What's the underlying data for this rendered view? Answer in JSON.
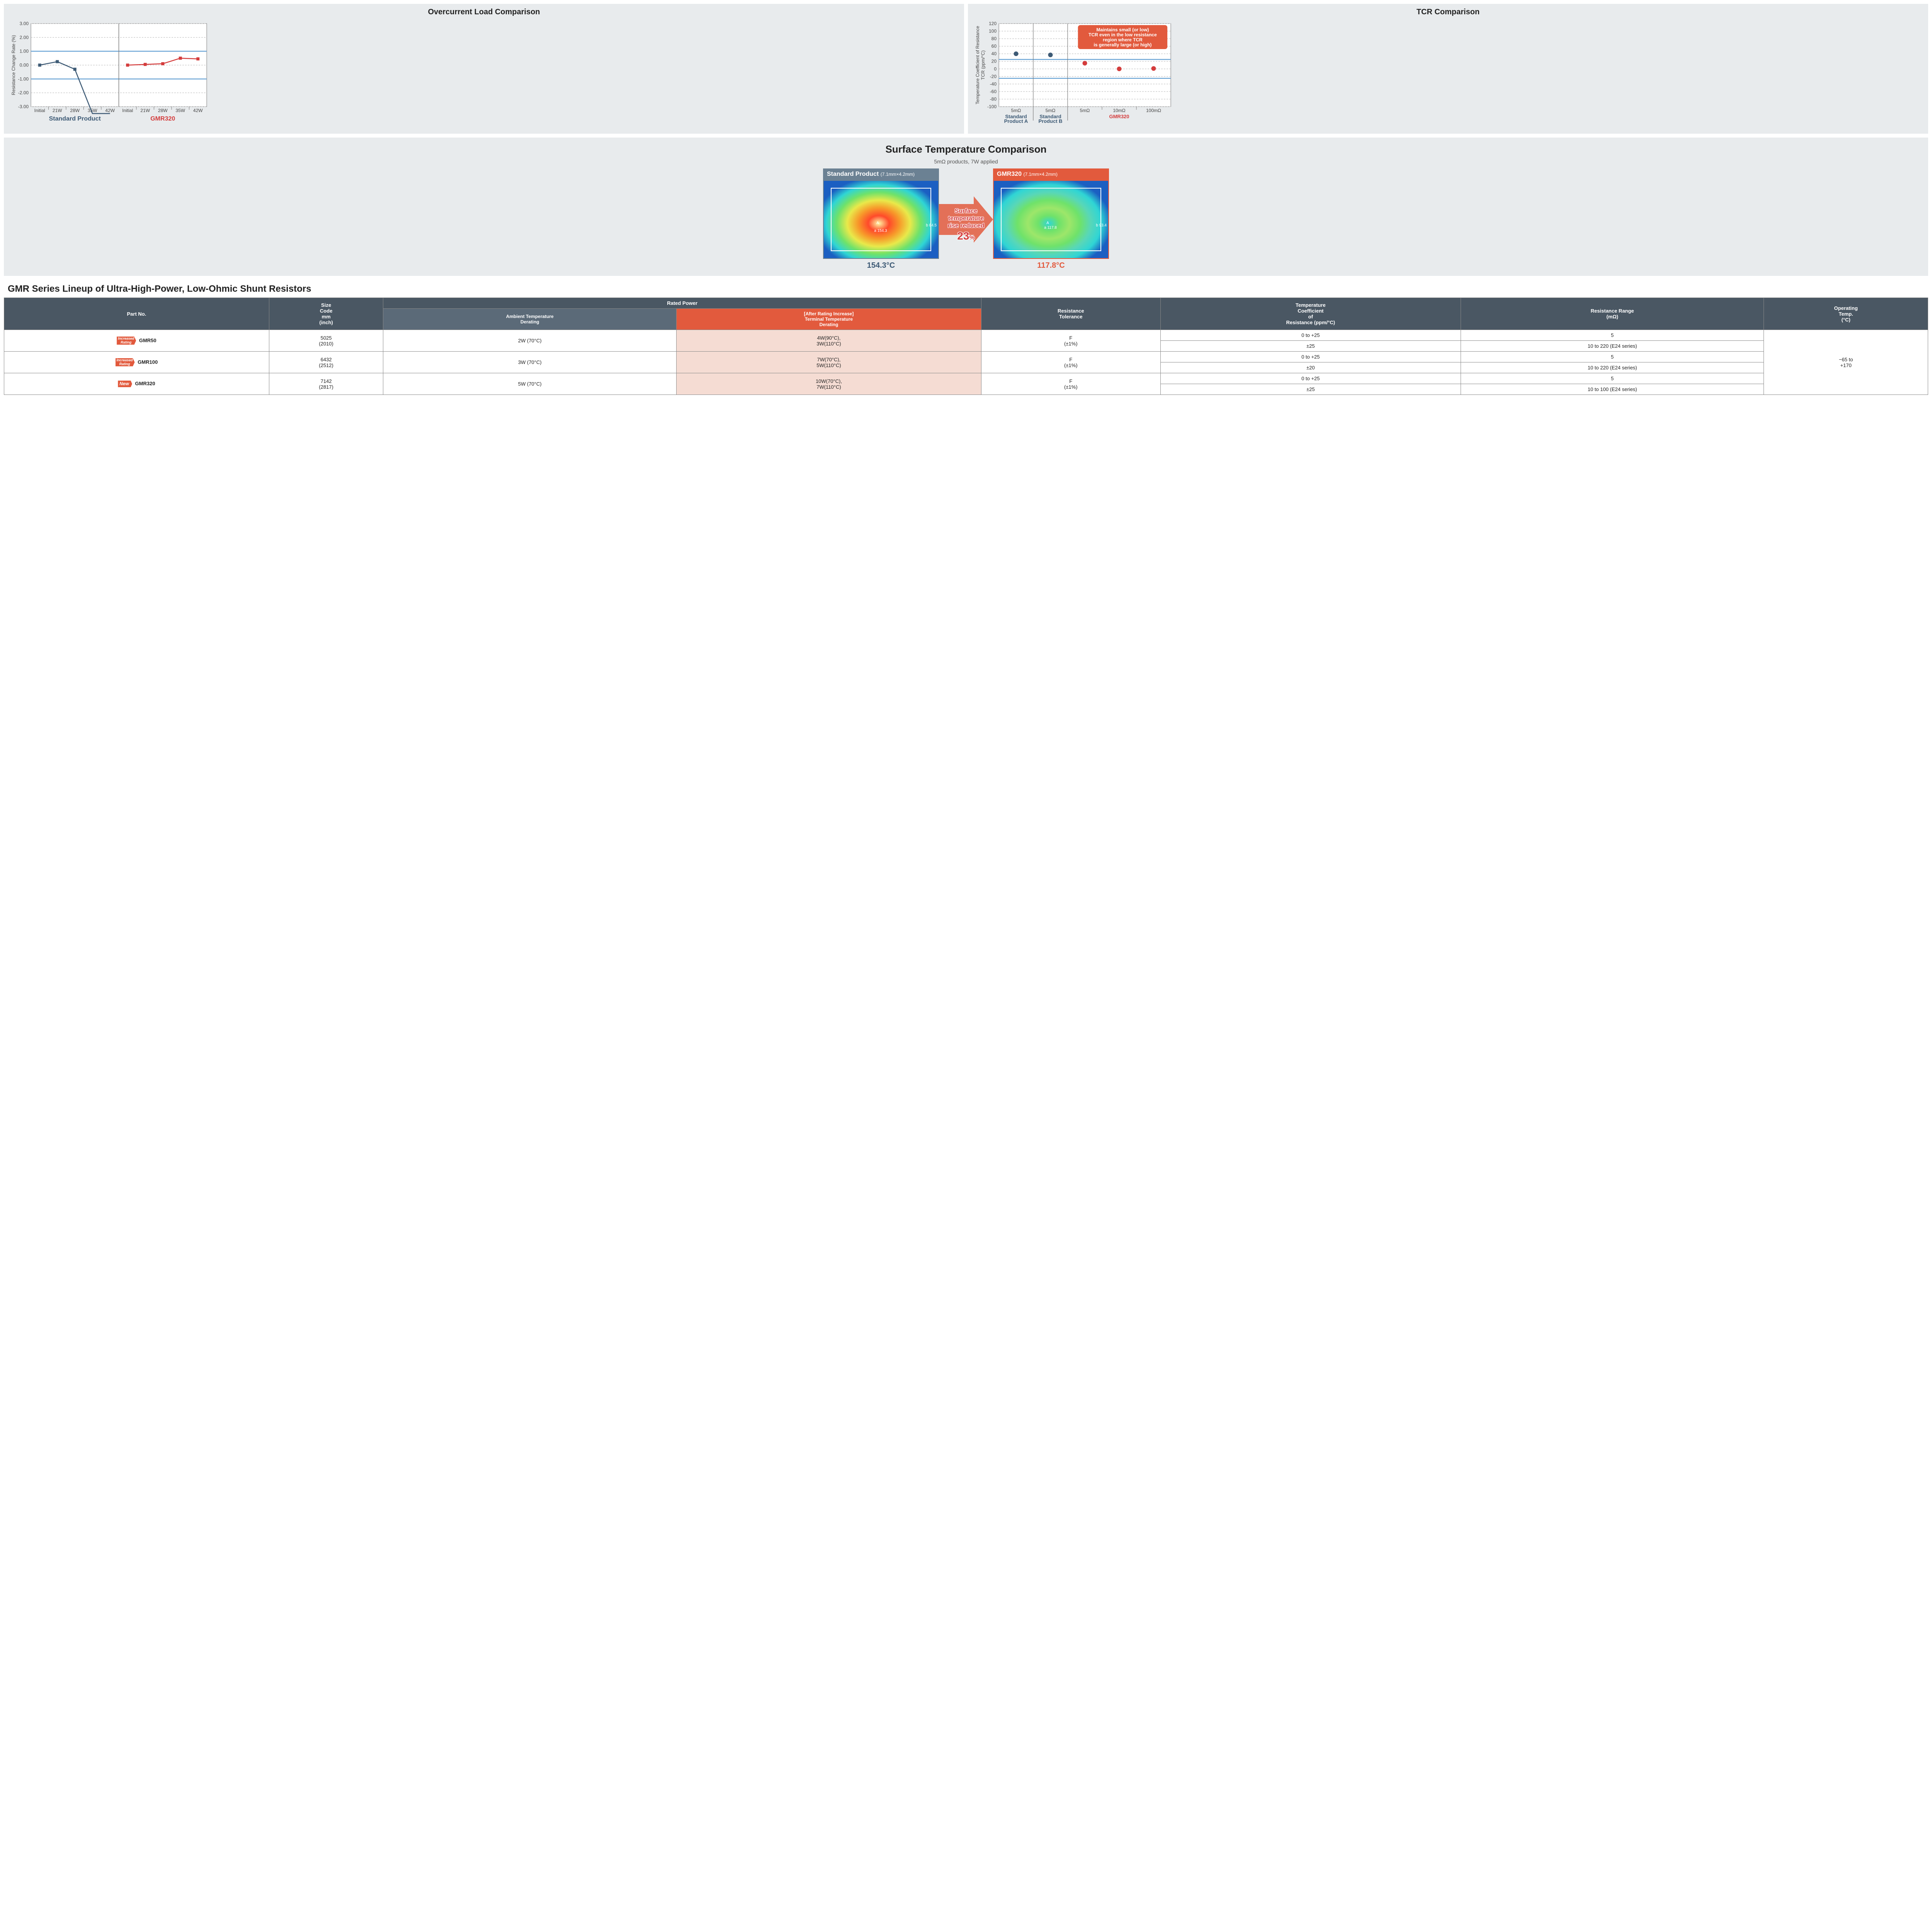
{
  "chart1": {
    "title": "Overcurrent Load Comparison",
    "ylabel": "Resistance Change Rate (%)",
    "yticks": [
      -3.0,
      -2.0,
      -1.0,
      0.0,
      1.0,
      2.0,
      3.0
    ],
    "ymin": -3.0,
    "ymax": 3.0,
    "threshold_lines": [
      1.0,
      -1.0
    ],
    "threshold_color": "#6da6d6",
    "grid_color": "#b5b5b5",
    "axis_color": "#7a7a7a",
    "panels": [
      {
        "label": "Standard Product",
        "label_color": "#3d5a75",
        "xticks": [
          "Initial",
          "21W",
          "28W",
          "35W",
          "42W"
        ],
        "line_color": "#3d5a75",
        "marker": "square",
        "points": [
          0.0,
          0.25,
          -0.3,
          -6.0,
          -6.0
        ]
      },
      {
        "label": "GMR320",
        "label_color": "#d43c3c",
        "xticks": [
          "Initial",
          "21W",
          "28W",
          "35W",
          "42W"
        ],
        "line_color": "#d43c3c",
        "marker": "square",
        "points": [
          0.0,
          0.05,
          0.1,
          0.5,
          0.45
        ]
      }
    ]
  },
  "chart2": {
    "title": "TCR Comparison",
    "ylabel": "Temperature Coefficient of Resistance\nTCR (ppm/°C)",
    "yticks": [
      -100,
      -80,
      -60,
      -40,
      -20,
      0,
      20,
      40,
      60,
      80,
      100,
      120
    ],
    "ymin": -100,
    "ymax": 120,
    "threshold_lines": [
      25,
      -25
    ],
    "threshold_color": "#6da6d6",
    "grid_color": "#b5b5b5",
    "axis_color": "#7a7a7a",
    "callout": {
      "lines": [
        "Maintains small (or low)",
        "TCR even in the low resistance",
        "region where TCR",
        "is generally large (or high)"
      ],
      "bg": "#e25a3d"
    },
    "panels": [
      {
        "label": "Standard\nProduct A",
        "label_color": "#3d5a75",
        "xticks": [
          "5mΩ"
        ],
        "dot_color": "#3d5a75",
        "points": [
          40
        ]
      },
      {
        "label": "Standard\nProduct B",
        "label_color": "#3d5a75",
        "xticks": [
          "5mΩ"
        ],
        "dot_color": "#3d5a75",
        "points": [
          37
        ]
      },
      {
        "label": "GMR320",
        "label_color": "#d43c3c",
        "xticks": [
          "5mΩ",
          "10mΩ",
          "100mΩ"
        ],
        "dot_color": "#d43c3c",
        "points": [
          15,
          0,
          1
        ]
      }
    ]
  },
  "thermal": {
    "title": "Surface Temperature Comparison",
    "subtitle": "5mΩ products, 7W applied",
    "arrow_lines": [
      "Surface",
      "temperature",
      "rise reduced"
    ],
    "arrow_pct": "23",
    "arrow_pct_suffix": "%",
    "left": {
      "header": "Standard Product",
      "header_sub": "(7.1mm×4.2mm)",
      "bg_gradient": [
        "#1b5fc2",
        "#2fd5d5",
        "#6fe26a",
        "#e9e94a",
        "#f79a2a",
        "#ff4a2a",
        "#fff7a6"
      ],
      "marker_label": "A",
      "point_a": "154.3",
      "point_b": "84.5",
      "temp": "154.3°C",
      "temp_color": "#3d5a75"
    },
    "right": {
      "header": "GMR320",
      "header_sub": "(7.1mm×4.2mm)",
      "bg_gradient": [
        "#1b5fc2",
        "#2fd5d5",
        "#58d7b8",
        "#6fe26a",
        "#9de66a",
        "#6fe26a",
        "#2fd5d5"
      ],
      "marker_label": "A",
      "point_a": "117.8",
      "point_b": "93.4",
      "temp": "117.8°C",
      "temp_color": "#e25a3d"
    }
  },
  "lineup": {
    "title": "GMR Series Lineup of Ultra-High-Power, Low-Ohmic Shunt Resistors",
    "headers": {
      "part": "Part No.",
      "size": "Size Code mm (inch)",
      "rated": "Rated Power",
      "amb": "Ambient Temperature Derating",
      "term_pre": "[After Rating Increase]",
      "term": "Terminal Temperature Derating",
      "restol": "Resistance Tolerance",
      "tcr": "Temperature Coefficient of Resistance (ppm/°C)",
      "range": "Resistance Range (mΩ)",
      "optemp": "Operating Temp. (°C)"
    },
    "optemp_value": "−65 to +170",
    "rows": [
      {
        "badge": "Increased Rating",
        "badge_type": "inc",
        "part": "GMR50",
        "size": "5025 (2010)",
        "amb": "2W (70°C)",
        "term": "4W(90°C), 3W(110°C)",
        "restol": "F (±1%)",
        "subrows": [
          {
            "tcr": "0 to +25",
            "range": "5"
          },
          {
            "tcr": "±25",
            "range": "10 to 220 (E24 series)"
          }
        ]
      },
      {
        "badge": "Increased Rating",
        "badge_type": "inc",
        "part": "GMR100",
        "size": "6432 (2512)",
        "amb": "3W (70°C)",
        "term": "7W(70°C), 5W(110°C)",
        "restol": "F (±1%)",
        "subrows": [
          {
            "tcr": "0 to +25",
            "range": "5"
          },
          {
            "tcr": "±20",
            "range": "10 to 220 (E24 series)"
          }
        ]
      },
      {
        "badge": "New",
        "badge_type": "new",
        "part": "GMR320",
        "size": "7142 (2817)",
        "amb": "5W (70°C)",
        "term": "10W(70°C), 7W(110°C)",
        "restol": "F (±1%)",
        "subrows": [
          {
            "tcr": "0 to +25",
            "range": "5"
          },
          {
            "tcr": "±25",
            "range": "10 to 100 (E24 series)"
          }
        ]
      }
    ]
  }
}
